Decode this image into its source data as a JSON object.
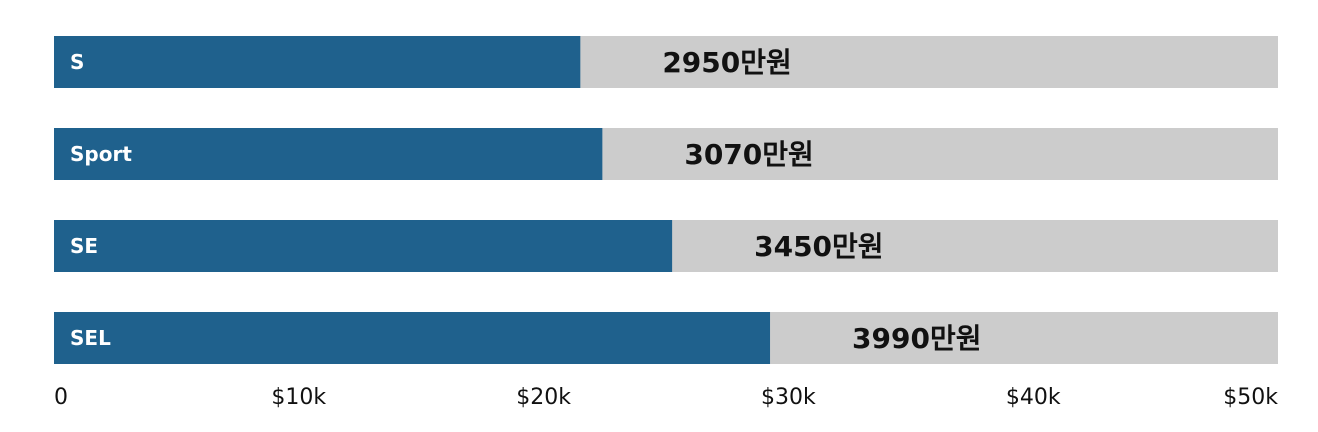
{
  "chart_data": {
    "type": "bar",
    "orientation": "horizontal",
    "categories": [
      "S",
      "Sport",
      "SE",
      "SEL"
    ],
    "values": [
      21500,
      22400,
      25250,
      29250
    ],
    "value_labels": [
      "2950만원",
      "3070만원",
      "3450만원",
      "3990만원"
    ],
    "xlim": [
      0,
      50000
    ],
    "x_ticks": [
      0,
      10000,
      20000,
      30000,
      40000,
      50000
    ],
    "x_tick_labels": [
      "0",
      "$10k",
      "$20k",
      "$30k",
      "$40k",
      "$50k"
    ],
    "grid": false,
    "colors": {
      "bar": "#1f618d",
      "track": "#cccccc"
    }
  }
}
